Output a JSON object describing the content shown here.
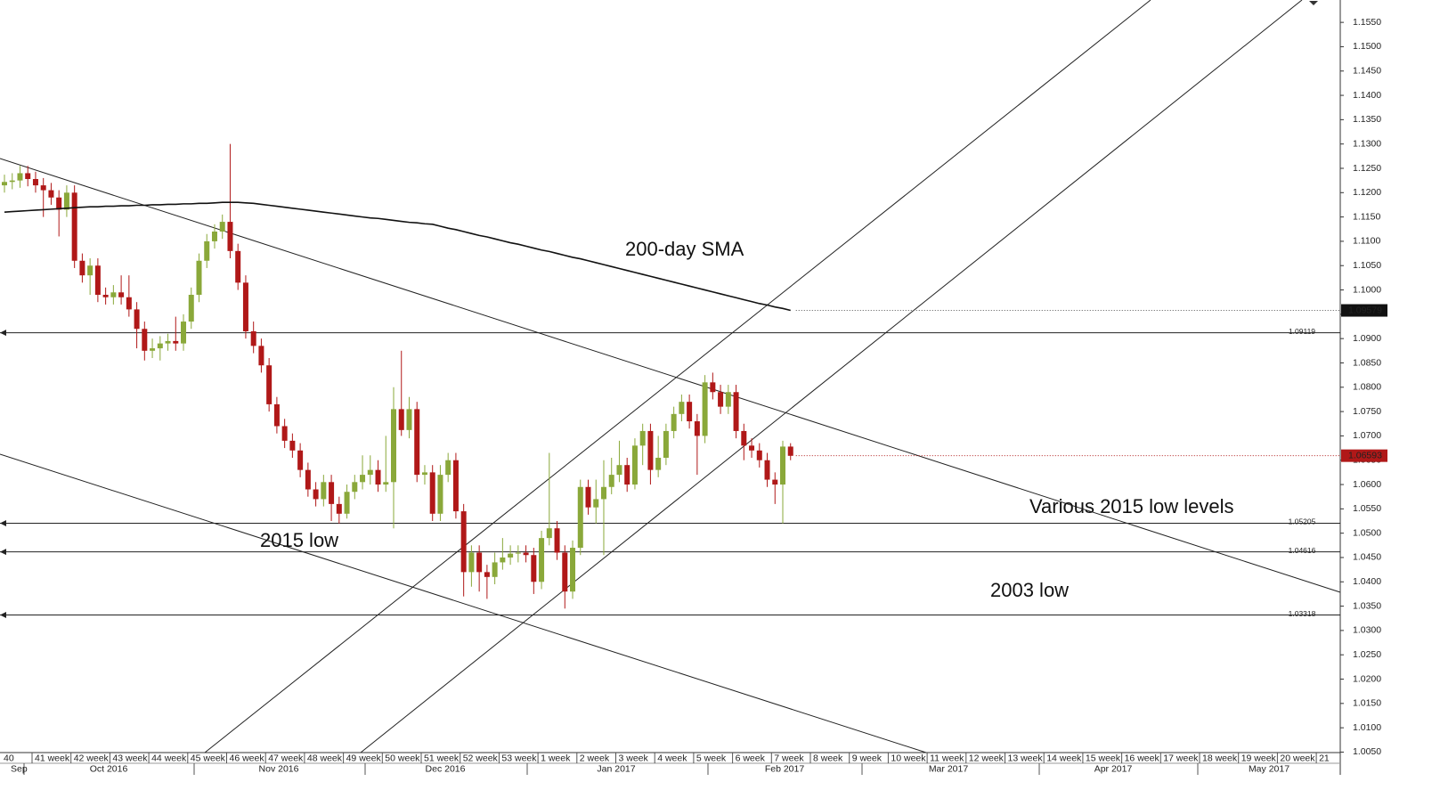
{
  "chart_data": {
    "type": "candlestick",
    "up_color": "#8aa83a",
    "down_color": "#b01818",
    "sma_color": "#111111",
    "ylim": [
      1.0049,
      1.1596
    ],
    "yticks": [
      {
        "value": 1.005,
        "label": "1.0050"
      },
      {
        "value": 1.01,
        "label": "1.0100"
      },
      {
        "value": 1.015,
        "label": "1.0150"
      },
      {
        "value": 1.02,
        "label": "1.0200"
      },
      {
        "value": 1.025,
        "label": "1.0250"
      },
      {
        "value": 1.03,
        "label": "1.0300"
      },
      {
        "value": 1.035,
        "label": "1.0350"
      },
      {
        "value": 1.04,
        "label": "1.0400"
      },
      {
        "value": 1.045,
        "label": "1.0450"
      },
      {
        "value": 1.05,
        "label": "1.0500"
      },
      {
        "value": 1.055,
        "label": "1.0550"
      },
      {
        "value": 1.06,
        "label": "1.0600"
      },
      {
        "value": 1.065,
        "label": "1.0650"
      },
      {
        "value": 1.07,
        "label": "1.0700"
      },
      {
        "value": 1.075,
        "label": "1.0750"
      },
      {
        "value": 1.08,
        "label": "1.0800"
      },
      {
        "value": 1.085,
        "label": "1.0850"
      },
      {
        "value": 1.09,
        "label": "1.0900"
      },
      {
        "value": 1.095,
        "label": "1.0950"
      },
      {
        "value": 1.1,
        "label": "1.1000"
      },
      {
        "value": 1.105,
        "label": "1.1050"
      },
      {
        "value": 1.11,
        "label": "1.1100"
      },
      {
        "value": 1.115,
        "label": "1.1150"
      },
      {
        "value": 1.12,
        "label": "1.1200"
      },
      {
        "value": 1.125,
        "label": "1.1250"
      },
      {
        "value": 1.13,
        "label": "1.1300"
      },
      {
        "value": 1.135,
        "label": "1.1350"
      },
      {
        "value": 1.14,
        "label": "1.1400"
      },
      {
        "value": 1.145,
        "label": "1.1450"
      },
      {
        "value": 1.15,
        "label": "1.1500"
      },
      {
        "value": 1.155,
        "label": "1.1550"
      }
    ],
    "weeks": [
      "40",
      "41 week",
      "42 week",
      "43 week",
      "44 week",
      "45 week",
      "46 week",
      "47 week",
      "48 week",
      "49 week",
      "50 week",
      "51 week",
      "52 week",
      "53 week",
      "1 week",
      "2 week",
      "3 week",
      "4 week",
      "5 week",
      "6 week",
      "7 week",
      "8 week",
      "9 week",
      "10 week",
      "11 week",
      "12 week",
      "13 week",
      "14 week",
      "15 week",
      "16 week",
      "17 week",
      "18 week",
      "19 week",
      "20 week",
      "21"
    ],
    "months": [
      "Sep",
      "Oct 2016",
      "Nov 2016",
      "Dec 2016",
      "Jan 2017",
      "Feb 2017",
      "Mar 2017",
      "Apr 2017",
      "May 2017"
    ],
    "open": [
      1.1215,
      1.1222,
      1.1225,
      1.124,
      1.1228,
      1.1215,
      1.1205,
      1.119,
      1.1165,
      1.12,
      1.106,
      1.103,
      1.105,
      1.099,
      1.0985,
      1.0995,
      1.0985,
      1.096,
      1.092,
      1.0875,
      1.088,
      1.089,
      1.0895,
      1.089,
      1.0935,
      1.099,
      1.106,
      1.11,
      1.112,
      1.114,
      1.108,
      1.1015,
      1.0915,
      1.0885,
      1.0845,
      1.0765,
      1.072,
      1.069,
      1.067,
      1.063,
      1.059,
      1.057,
      1.0605,
      1.056,
      1.054,
      1.0585,
      1.0605,
      1.062,
      1.063,
      1.06,
      1.0605,
      1.0755,
      1.0712,
      1.0755,
      1.062,
      1.0625,
      1.054,
      1.062,
      1.065,
      1.0545,
      1.042,
      1.046,
      1.042,
      1.041,
      1.044,
      1.045,
      1.0458,
      1.046,
      1.0455,
      1.04,
      1.049,
      1.051,
      1.046,
      1.038,
      1.047,
      1.0595,
      1.0553,
      1.057,
      1.0595,
      1.062,
      1.064,
      1.06,
      1.068,
      1.071,
      1.063,
      1.0655,
      1.071,
      1.0745,
      1.077,
      1.073,
      1.07,
      1.081,
      1.079,
      1.076,
      1.079,
      1.071,
      1.068,
      1.067,
      1.065,
      1.061,
      1.06,
      1.0678
    ],
    "high": [
      1.1237,
      1.124,
      1.1255,
      1.1255,
      1.1243,
      1.123,
      1.122,
      1.1205,
      1.1215,
      1.1215,
      1.1075,
      1.1065,
      1.1065,
      1.1005,
      1.101,
      1.103,
      1.103,
      1.0975,
      1.0935,
      1.09,
      1.0905,
      1.091,
      1.0945,
      1.095,
      1.1005,
      1.1075,
      1.1115,
      1.1135,
      1.1155,
      1.13,
      1.1095,
      1.103,
      1.0935,
      1.09,
      1.086,
      1.078,
      1.0735,
      1.0705,
      1.0685,
      1.0645,
      1.0605,
      1.062,
      1.062,
      1.0575,
      1.06,
      1.062,
      1.066,
      1.066,
      1.065,
      1.07,
      1.08,
      1.0875,
      1.078,
      1.077,
      1.064,
      1.064,
      1.064,
      1.0665,
      1.0665,
      1.056,
      1.0475,
      1.0475,
      1.0435,
      1.046,
      1.049,
      1.0475,
      1.0475,
      1.0475,
      1.047,
      1.0505,
      1.0665,
      1.0525,
      1.0475,
      1.0485,
      1.061,
      1.061,
      1.061,
      1.065,
      1.0655,
      1.069,
      1.0655,
      1.0695,
      1.0725,
      1.0725,
      1.07,
      1.0725,
      1.076,
      1.0785,
      1.0785,
      1.0745,
      1.0825,
      1.083,
      1.0805,
      1.0805,
      1.0805,
      1.0725,
      1.0695,
      1.0685,
      1.0665,
      1.0625,
      1.069,
      1.0685
    ],
    "low": [
      1.12,
      1.1207,
      1.121,
      1.1213,
      1.12,
      1.115,
      1.1175,
      1.111,
      1.115,
      1.1045,
      1.1015,
      1.099,
      1.0975,
      1.097,
      1.097,
      1.097,
      1.0945,
      1.088,
      1.0855,
      1.086,
      1.0855,
      1.0875,
      1.0875,
      1.0875,
      1.092,
      1.0975,
      1.1045,
      1.1085,
      1.1105,
      1.1065,
      1.1,
      1.09,
      1.087,
      1.083,
      1.075,
      1.0705,
      1.0675,
      1.0655,
      1.0615,
      1.0575,
      1.0555,
      1.0555,
      1.0525,
      1.052,
      1.053,
      1.057,
      1.059,
      1.06,
      1.0585,
      1.0585,
      1.051,
      1.07,
      1.0695,
      1.0605,
      1.06,
      1.0525,
      1.0525,
      1.0605,
      1.053,
      1.037,
      1.039,
      1.038,
      1.0365,
      1.0395,
      1.0425,
      1.0435,
      1.044,
      1.044,
      1.0375,
      1.0385,
      1.0475,
      1.0445,
      1.0345,
      1.0365,
      1.0455,
      1.0538,
      1.052,
      1.0455,
      1.058,
      1.0605,
      1.0585,
      1.059,
      1.064,
      1.06,
      1.0615,
      1.064,
      1.0695,
      1.073,
      1.0715,
      1.062,
      1.0685,
      1.0775,
      1.0745,
      1.0745,
      1.0695,
      1.065,
      1.0655,
      1.0635,
      1.0595,
      1.056,
      1.052,
      1.065
    ],
    "close": [
      1.1222,
      1.1225,
      1.124,
      1.1228,
      1.1215,
      1.1205,
      1.119,
      1.1165,
      1.12,
      1.106,
      1.103,
      1.105,
      1.099,
      1.0985,
      1.0995,
      1.0985,
      1.096,
      1.092,
      1.0875,
      1.088,
      1.089,
      1.0895,
      1.089,
      1.0935,
      1.099,
      1.106,
      1.11,
      1.112,
      1.114,
      1.108,
      1.1015,
      1.0915,
      1.0885,
      1.0845,
      1.0765,
      1.072,
      1.069,
      1.067,
      1.063,
      1.059,
      1.057,
      1.0605,
      1.056,
      1.054,
      1.0585,
      1.0605,
      1.062,
      1.063,
      1.06,
      1.0605,
      1.0755,
      1.0712,
      1.0755,
      1.062,
      1.0625,
      1.054,
      1.062,
      1.065,
      1.0545,
      1.042,
      1.046,
      1.042,
      1.041,
      1.044,
      1.045,
      1.0458,
      1.046,
      1.0455,
      1.04,
      1.049,
      1.051,
      1.046,
      1.038,
      1.047,
      1.0595,
      1.0553,
      1.057,
      1.0595,
      1.062,
      1.064,
      1.06,
      1.068,
      1.071,
      1.063,
      1.0655,
      1.071,
      1.0745,
      1.077,
      1.073,
      1.07,
      1.081,
      1.079,
      1.076,
      1.079,
      1.071,
      1.068,
      1.067,
      1.065,
      1.061,
      1.06,
      1.0678,
      1.0659
    ],
    "sma": [
      1.116,
      1.1161,
      1.1162,
      1.1163,
      1.1164,
      1.1165,
      1.1166,
      1.1167,
      1.1168,
      1.1169,
      1.117,
      1.1171,
      1.1171,
      1.1172,
      1.1172,
      1.1173,
      1.1173,
      1.1174,
      1.1174,
      1.1175,
      1.1175,
      1.1176,
      1.1176,
      1.1177,
      1.1177,
      1.1178,
      1.1178,
      1.1179,
      1.118,
      1.118,
      1.118,
      1.1179,
      1.1178,
      1.1176,
      1.1174,
      1.1172,
      1.117,
      1.1168,
      1.1166,
      1.1164,
      1.1162,
      1.116,
      1.1158,
      1.1156,
      1.1154,
      1.1152,
      1.115,
      1.1148,
      1.1147,
      1.1145,
      1.1143,
      1.1141,
      1.1139,
      1.1138,
      1.1136,
      1.1135,
      1.1131,
      1.1127,
      1.1124,
      1.112,
      1.1116,
      1.1112,
      1.1109,
      1.1105,
      1.1101,
      1.1097,
      1.1094,
      1.109,
      1.1086,
      1.1082,
      1.1079,
      1.1075,
      1.1071,
      1.1067,
      1.1064,
      1.106,
      1.1056,
      1.1052,
      1.1048,
      1.1044,
      1.104,
      1.1036,
      1.1032,
      1.1028,
      1.1024,
      1.102,
      1.1016,
      1.1012,
      1.1008,
      1.1004,
      1.1,
      1.0996,
      1.0992,
      1.0988,
      1.0984,
      1.098,
      1.0976,
      1.0972,
      1.0969,
      1.0965,
      1.0962,
      1.0958
    ],
    "levels": [
      1.09119,
      1.05205,
      1.04616,
      1.03318
    ],
    "sma_last": 1.09579,
    "last_price": 1.06593,
    "annotations": [
      "200-day SMA",
      "2015 low",
      "Various 2015 low levels",
      "2003 low"
    ]
  }
}
